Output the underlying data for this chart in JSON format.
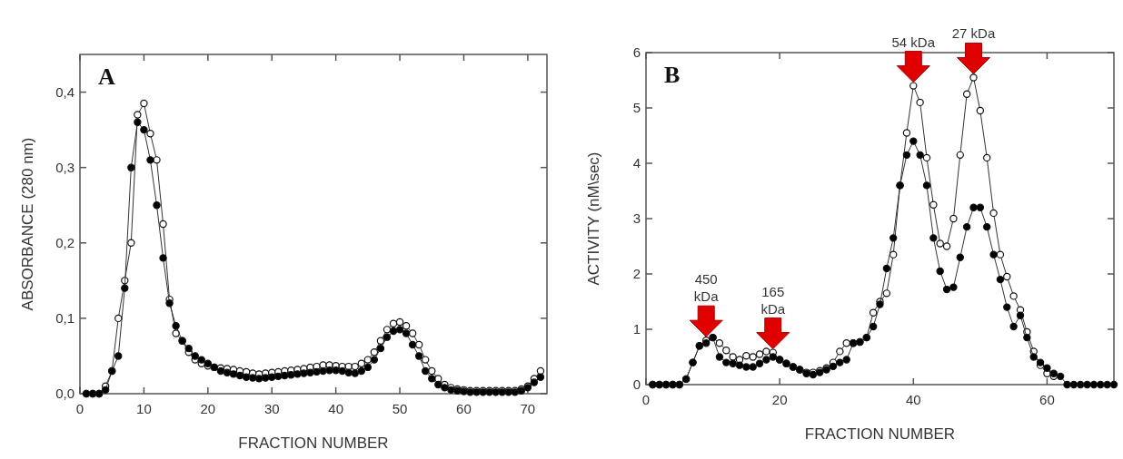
{
  "chart_data": [
    {
      "type": "line",
      "title": "A",
      "xlabel": "FRACTION NUMBER",
      "ylabel": "ABSORBANCE (280 nm)",
      "xlim": [
        0,
        73
      ],
      "ylim": [
        0,
        0.45
      ],
      "xticks": [
        0,
        10,
        20,
        30,
        40,
        50,
        60,
        70
      ],
      "yticks": [
        {
          "value": 0,
          "label": "0,0"
        },
        {
          "value": 0.1,
          "label": "0,1"
        },
        {
          "value": 0.2,
          "label": "0,2"
        },
        {
          "value": 0.3,
          "label": "0,3"
        },
        {
          "value": 0.4,
          "label": "0,4"
        }
      ],
      "grid": false,
      "marker": "circle",
      "line_style": "solid",
      "x": [
        1,
        2,
        3,
        4,
        5,
        6,
        7,
        8,
        9,
        10,
        11,
        12,
        13,
        14,
        15,
        16,
        17,
        18,
        19,
        20,
        21,
        22,
        23,
        24,
        25,
        26,
        27,
        28,
        29,
        30,
        31,
        32,
        33,
        34,
        35,
        36,
        37,
        38,
        39,
        40,
        41,
        42,
        43,
        44,
        45,
        46,
        47,
        48,
        49,
        50,
        51,
        52,
        53,
        54,
        55,
        56,
        57,
        58,
        59,
        60,
        61,
        62,
        63,
        64,
        65,
        66,
        67,
        68,
        69,
        70,
        71,
        72
      ],
      "series": [
        {
          "color": "#ffffff",
          "values": [
            0,
            0,
            0,
            0.01,
            0.03,
            0.1,
            0.15,
            0.2,
            0.37,
            0.385,
            0.345,
            0.31,
            0.225,
            0.125,
            0.08,
            0.07,
            0.055,
            0.045,
            0.04,
            0.037,
            0.035,
            0.034,
            0.033,
            0.032,
            0.03,
            0.029,
            0.027,
            0.026,
            0.027,
            0.028,
            0.029,
            0.03,
            0.031,
            0.032,
            0.033,
            0.035,
            0.036,
            0.038,
            0.038,
            0.037,
            0.036,
            0.036,
            0.036,
            0.04,
            0.045,
            0.055,
            0.07,
            0.085,
            0.093,
            0.095,
            0.09,
            0.08,
            0.065,
            0.045,
            0.03,
            0.02,
            0.012,
            0.008,
            0.006,
            0.005,
            0.004,
            0.004,
            0.004,
            0.004,
            0.004,
            0.004,
            0.004,
            0.004,
            0.006,
            0.01,
            0.02,
            0.03
          ]
        },
        {
          "color": "#000000",
          "values": [
            0,
            0,
            0,
            0.005,
            0.03,
            0.05,
            0.14,
            0.3,
            0.36,
            0.35,
            0.31,
            0.25,
            0.18,
            0.12,
            0.09,
            0.07,
            0.06,
            0.05,
            0.045,
            0.04,
            0.035,
            0.03,
            0.028,
            0.026,
            0.024,
            0.022,
            0.021,
            0.02,
            0.021,
            0.022,
            0.023,
            0.024,
            0.025,
            0.026,
            0.027,
            0.028,
            0.029,
            0.03,
            0.031,
            0.031,
            0.03,
            0.028,
            0.027,
            0.03,
            0.035,
            0.045,
            0.06,
            0.075,
            0.083,
            0.085,
            0.08,
            0.065,
            0.05,
            0.03,
            0.02,
            0.012,
            0.008,
            0.005,
            0.004,
            0.003,
            0.002,
            0.002,
            0.002,
            0.002,
            0.002,
            0.002,
            0.002,
            0.002,
            0.004,
            0.008,
            0.015,
            0.022
          ]
        }
      ]
    },
    {
      "type": "line",
      "title": "B",
      "xlabel": "FRACTION NUMBER",
      "ylabel": "ACTIVITY (nM\\sec)",
      "xlim": [
        0,
        70
      ],
      "ylim": [
        0,
        6
      ],
      "xticks": [
        0,
        20,
        40,
        60
      ],
      "yticks": [
        0,
        1,
        2,
        3,
        4,
        5,
        6
      ],
      "grid": false,
      "marker": "circle",
      "line_style": "solid",
      "annotations": [
        {
          "text": "450 kDa",
          "x": 9,
          "y": 0.8
        },
        {
          "text": "165 kDa",
          "x": 19,
          "y": 0.58
        },
        {
          "text": "54 kDa",
          "x": 40,
          "y": 5.4
        },
        {
          "text": "27 kDa",
          "x": 49,
          "y": 5.55
        }
      ],
      "series": [
        {
          "color": "#ffffff",
          "x": [
            1,
            2,
            3,
            4,
            5,
            6,
            7,
            8,
            9,
            10,
            11,
            12,
            13,
            14,
            15,
            16,
            17,
            18,
            19,
            20,
            21,
            22,
            23,
            24,
            25,
            26,
            27,
            28,
            29,
            30,
            31,
            32,
            33,
            34,
            35,
            36,
            37,
            38,
            39,
            40,
            41,
            42,
            43,
            44,
            45,
            46,
            47,
            48,
            49,
            50,
            51,
            52,
            53,
            54,
            55,
            56,
            57,
            58,
            59,
            60,
            61
          ],
          "values": [
            0,
            0,
            0,
            0,
            0,
            0.1,
            0.4,
            0.7,
            0.8,
            0.85,
            0.75,
            0.62,
            0.5,
            0.45,
            0.52,
            0.5,
            0.55,
            0.6,
            0.58,
            0.45,
            0.38,
            0.32,
            0.27,
            0.22,
            0.22,
            0.25,
            0.3,
            0.4,
            0.6,
            0.75,
            0.75,
            0.77,
            0.85,
            1.3,
            1.5,
            1.65,
            2.35,
            3.6,
            4.55,
            5.4,
            5.1,
            4.1,
            3.25,
            2.55,
            2.5,
            3.0,
            4.15,
            5.25,
            5.55,
            4.95,
            4.1,
            3.1,
            2.35,
            1.95,
            1.6,
            1.35,
            0.95,
            0.6,
            0.35,
            0.2,
            0.15
          ]
        },
        {
          "color": "#000000",
          "x": [
            1,
            2,
            3,
            4,
            5,
            6,
            7,
            8,
            9,
            10,
            11,
            12,
            13,
            14,
            15,
            16,
            17,
            18,
            19,
            20,
            21,
            22,
            23,
            24,
            25,
            26,
            27,
            28,
            29,
            30,
            31,
            32,
            33,
            34,
            35,
            36,
            37,
            38,
            39,
            40,
            41,
            42,
            43,
            44,
            45,
            46,
            47,
            48,
            49,
            50,
            51,
            52,
            53,
            54,
            55,
            56,
            57,
            58,
            59,
            60,
            61,
            62,
            63,
            64,
            65,
            66,
            67,
            68,
            69,
            70
          ],
          "values": [
            0,
            0,
            0,
            0,
            0,
            0.1,
            0.4,
            0.7,
            0.75,
            0.85,
            0.5,
            0.4,
            0.38,
            0.35,
            0.32,
            0.32,
            0.38,
            0.45,
            0.5,
            0.45,
            0.38,
            0.32,
            0.27,
            0.2,
            0.18,
            0.22,
            0.27,
            0.33,
            0.4,
            0.45,
            0.75,
            0.77,
            0.85,
            1.05,
            1.45,
            2.1,
            2.65,
            3.6,
            4.15,
            4.4,
            4.15,
            3.6,
            2.65,
            2.05,
            1.72,
            1.76,
            2.3,
            2.85,
            3.2,
            3.2,
            2.85,
            2.35,
            1.9,
            1.4,
            1.05,
            1.25,
            0.85,
            0.5,
            0.4,
            0.3,
            0.2,
            0.15,
            0,
            0,
            0,
            0,
            0,
            0,
            0,
            0
          ]
        }
      ]
    }
  ]
}
